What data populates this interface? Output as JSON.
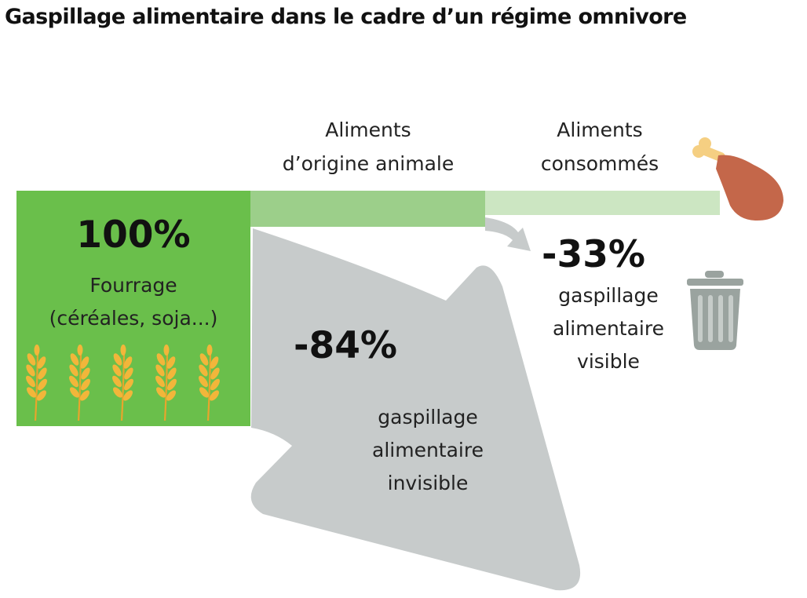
{
  "title": "Gaspillage alimentaire dans le cadre d’un régime omnivore",
  "stages": {
    "fodder": {
      "percent": "100%",
      "label_line1": "Fourrage",
      "label_line2": "(céréales, soja...)"
    },
    "animal_food": {
      "line1": "Aliments",
      "line2": "d’origine animale"
    },
    "consumed": {
      "line1": "Aliments",
      "line2": "consommés"
    }
  },
  "losses": {
    "invisible": {
      "percent": "-84%",
      "line1": "gaspillage",
      "line2": "alimentaire",
      "line3": "invisible"
    },
    "visible": {
      "percent": "-33%",
      "line1": "gaspillage",
      "line2": "alimentaire",
      "line3": "visible"
    }
  },
  "chart_data": {
    "type": "sankey",
    "flows": [
      {
        "from": "Fourrage (céréales, soja...)",
        "to": "Aliments d’origine animale",
        "value": 16
      },
      {
        "from": "Fourrage (céréales, soja...)",
        "to": "gaspillage alimentaire invisible",
        "value": 84
      },
      {
        "from": "Aliments d’origine animale",
        "to": "Aliments consommés",
        "value": 11
      },
      {
        "from": "Aliments d’origine animale",
        "to": "gaspillage alimentaire visible",
        "value": 5
      }
    ]
  },
  "icons": [
    "wheat-icon",
    "chicken-leg-icon",
    "trash-can-icon"
  ],
  "colors": {
    "fodder_green": "#6abf4b",
    "animal_green": "#9ccf8a",
    "consumed_green": "#cce6c2",
    "waste_gray": "#c7cbcb",
    "wheat_gold": "#f2b63a",
    "meat_brown": "#c4674a",
    "bone": "#f5cf82",
    "trash_gray": "#9aa39f"
  }
}
